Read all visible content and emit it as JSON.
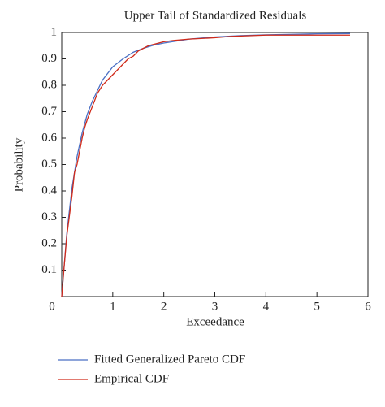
{
  "chart_data": {
    "type": "line",
    "title": "Upper Tail of Standardized Residuals",
    "x_label": "Exceedance",
    "y_label": "Probability",
    "xlim": [
      0,
      6
    ],
    "xticks": [
      0,
      1,
      2,
      3,
      4,
      5,
      6
    ],
    "ylim": [
      0,
      1
    ],
    "yticks": [
      0.1,
      0.2,
      0.3,
      0.4,
      0.5,
      0.6,
      0.7,
      0.8,
      0.9,
      1
    ],
    "legend": "bottom",
    "series": [
      {
        "name": "Fitted Generalized Pareto CDF",
        "color": "#4a6fc4",
        "x": [
          0,
          0.1,
          0.2,
          0.3,
          0.4,
          0.5,
          0.6,
          0.7,
          0.8,
          1,
          1.2,
          1.4,
          1.6,
          1.8,
          2,
          2.5,
          3,
          3.5,
          4,
          4.5,
          5,
          5.65
        ],
        "values": [
          0,
          0.24,
          0.41,
          0.53,
          0.62,
          0.69,
          0.74,
          0.78,
          0.82,
          0.87,
          0.9,
          0.925,
          0.94,
          0.952,
          0.96,
          0.975,
          0.983,
          0.988,
          0.991,
          0.993,
          0.995,
          0.996
        ]
      },
      {
        "name": "Empirical CDF",
        "color": "#d02a1a",
        "x": [
          0,
          0.05,
          0.1,
          0.2,
          0.25,
          0.3,
          0.35,
          0.4,
          0.45,
          0.5,
          0.6,
          0.7,
          0.8,
          0.9,
          1,
          1.1,
          1.2,
          1.3,
          1.4,
          1.5,
          1.6,
          1.7,
          1.8,
          2,
          2.2,
          2.5,
          3,
          3.3,
          4,
          4.5,
          5.65
        ],
        "values": [
          0,
          0.12,
          0.23,
          0.38,
          0.47,
          0.5,
          0.55,
          0.6,
          0.64,
          0.67,
          0.72,
          0.77,
          0.8,
          0.82,
          0.84,
          0.86,
          0.88,
          0.9,
          0.91,
          0.93,
          0.94,
          0.95,
          0.955,
          0.965,
          0.97,
          0.975,
          0.98,
          0.985,
          0.99,
          0.99,
          0.99
        ]
      }
    ]
  }
}
